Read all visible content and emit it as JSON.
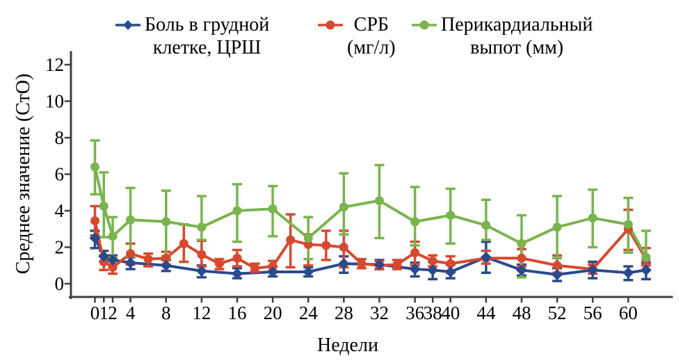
{
  "colors": {
    "background": "#ffffff",
    "axis": "#3f3f3f",
    "text": "#000000",
    "pain_blue": "#2a4a8b",
    "crp_red": "#d7492f",
    "effusion_green": "#79b44e"
  },
  "legend": {
    "items": [
      {
        "label_line1": "Боль в грудной",
        "label_line2": "клетке, ЦРШ",
        "color": "#2a4a8b",
        "marker": "diamond"
      },
      {
        "label_line1": "СРБ",
        "label_line2": "(мг/л)",
        "color": "#d7492f",
        "marker": "circle"
      },
      {
        "label_line1": "Перикардиальный",
        "label_line2": "выпот (мм)",
        "color": "#79b44e",
        "marker": "circle"
      }
    ]
  },
  "chart_data": {
    "type": "line",
    "title": "",
    "xlabel": "Недели",
    "ylabel": "Среднее значение (СтО)",
    "ylim": [
      0,
      12
    ],
    "xlim": [
      0,
      62
    ],
    "grid": false,
    "legend_position": "top",
    "y_ticks": [
      0,
      2,
      4,
      6,
      8,
      10,
      12
    ],
    "x_ticks": [
      0,
      1,
      2,
      4,
      8,
      12,
      16,
      20,
      24,
      28,
      32,
      36,
      38,
      40,
      44,
      48,
      52,
      56,
      60
    ],
    "weeks": [
      0,
      1,
      2,
      4,
      6,
      8,
      10,
      12,
      14,
      16,
      18,
      20,
      22,
      24,
      26,
      28,
      30,
      32,
      34,
      36,
      38,
      40,
      44,
      48,
      52,
      56,
      60,
      62
    ],
    "series": [
      {
        "id": "pain",
        "name": "Боль в грудной клетке, ЦРШ",
        "color": "#2a4a8b",
        "marker": "diamond",
        "values": [
          2.5,
          1.5,
          1.3,
          1.15,
          null,
          1.0,
          null,
          0.7,
          null,
          0.55,
          null,
          0.65,
          null,
          0.65,
          null,
          1.1,
          null,
          1.05,
          null,
          0.8,
          0.75,
          0.65,
          1.45,
          0.75,
          0.5,
          0.75,
          0.6,
          0.75
        ],
        "err_low": [
          1.95,
          1.2,
          1.05,
          0.8,
          null,
          0.7,
          null,
          0.35,
          null,
          0.3,
          null,
          0.4,
          null,
          0.4,
          null,
          0.6,
          null,
          0.8,
          null,
          0.4,
          0.25,
          0.3,
          0.6,
          0.45,
          0.15,
          0.3,
          0.2,
          0.25
        ],
        "err_high": [
          2.9,
          1.8,
          1.55,
          1.45,
          null,
          1.3,
          null,
          1.0,
          null,
          0.85,
          null,
          0.95,
          null,
          0.9,
          null,
          1.5,
          null,
          1.3,
          null,
          1.15,
          1.2,
          1.05,
          2.3,
          1.05,
          0.85,
          1.2,
          0.95,
          1.15
        ]
      },
      {
        "id": "crp",
        "name": "СРБ (мг/л)",
        "color": "#d7492f",
        "marker": "circle",
        "values": [
          3.45,
          1.2,
          0.9,
          1.65,
          1.35,
          1.4,
          2.2,
          1.6,
          1.1,
          1.4,
          0.85,
          0.95,
          2.4,
          2.15,
          2.1,
          2.0,
          1.1,
          1.0,
          1.05,
          1.7,
          1.25,
          1.1,
          1.4,
          1.4,
          1.0,
          0.8,
          3.0,
          1.35
        ],
        "err_low": [
          2.65,
          0.75,
          0.55,
          1.05,
          0.95,
          1.05,
          1.2,
          0.95,
          0.8,
          0.95,
          0.65,
          0.7,
          0.9,
          1.0,
          1.3,
          0.9,
          0.85,
          0.8,
          0.8,
          1.0,
          0.95,
          0.6,
          1.1,
          0.95,
          0.6,
          0.55,
          1.85,
          1.0
        ],
        "err_high": [
          4.25,
          1.55,
          1.35,
          2.2,
          1.65,
          1.75,
          3.25,
          2.35,
          1.35,
          1.85,
          1.1,
          1.25,
          3.8,
          2.7,
          2.9,
          2.9,
          1.35,
          1.25,
          1.3,
          2.3,
          1.55,
          1.5,
          1.8,
          1.9,
          1.55,
          1.05,
          4.05,
          1.95
        ]
      },
      {
        "id": "effusion",
        "name": "Перикардиальный выпот (мм)",
        "color": "#79b44e",
        "marker": "circle",
        "values": [
          6.4,
          4.25,
          2.6,
          3.5,
          null,
          3.4,
          null,
          3.1,
          null,
          4.0,
          null,
          4.1,
          null,
          2.5,
          null,
          4.2,
          null,
          4.55,
          null,
          3.4,
          null,
          3.75,
          3.2,
          2.2,
          3.1,
          3.6,
          3.25,
          1.45
        ],
        "err_low": [
          4.9,
          2.55,
          1.45,
          1.5,
          null,
          1.5,
          null,
          2.4,
          null,
          2.3,
          null,
          2.6,
          null,
          1.35,
          null,
          2.7,
          null,
          2.5,
          null,
          2.1,
          null,
          2.2,
          2.4,
          0.35,
          1.4,
          2.0,
          1.7,
          1.45
        ],
        "err_high": [
          7.85,
          6.1,
          3.65,
          5.25,
          null,
          5.1,
          null,
          4.8,
          null,
          5.45,
          null,
          5.35,
          null,
          3.65,
          null,
          6.05,
          null,
          6.5,
          null,
          5.3,
          null,
          5.2,
          4.6,
          3.75,
          4.8,
          5.15,
          4.7,
          2.9
        ]
      }
    ]
  }
}
